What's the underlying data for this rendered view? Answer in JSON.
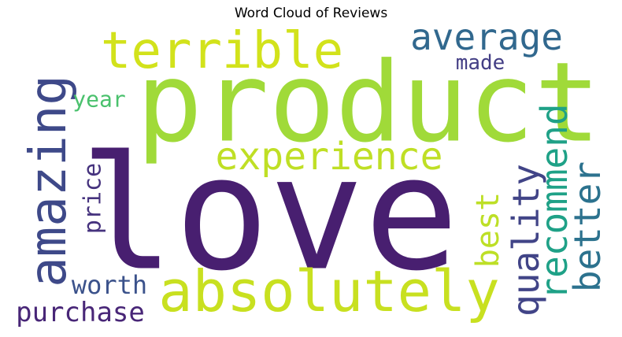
{
  "chart_data": {
    "type": "word_cloud",
    "title": "Word Cloud of Reviews",
    "colormap": "viridis",
    "background": "#ffffff",
    "words": [
      {
        "text": "love",
        "weight": 1.0,
        "color": "#481f70"
      },
      {
        "text": "product",
        "weight": 0.72,
        "color": "#a0da39"
      },
      {
        "text": "absolutely",
        "weight": 0.37,
        "color": "#c8e020"
      },
      {
        "text": "amazing",
        "weight": 0.33,
        "color": "#3e4989"
      },
      {
        "text": "terrible",
        "weight": 0.33,
        "color": "#d2e21b"
      },
      {
        "text": "experience",
        "weight": 0.25,
        "color": "#bfdf25"
      },
      {
        "text": "quality",
        "weight": 0.24,
        "color": "#414487"
      },
      {
        "text": "better",
        "weight": 0.24,
        "color": "#2c728e"
      },
      {
        "text": "recommend",
        "weight": 0.24,
        "color": "#1fa187"
      },
      {
        "text": "average",
        "weight": 0.24,
        "color": "#31688e"
      },
      {
        "text": "best",
        "weight": 0.21,
        "color": "#bddf26"
      },
      {
        "text": "purchase",
        "weight": 0.17,
        "color": "#482677"
      },
      {
        "text": "worth",
        "weight": 0.17,
        "color": "#3b528b"
      },
      {
        "text": "price",
        "weight": 0.16,
        "color": "#46337e"
      },
      {
        "text": "year",
        "weight": 0.14,
        "color": "#4ac16d"
      },
      {
        "text": "made",
        "weight": 0.13,
        "color": "#433e85"
      }
    ]
  }
}
